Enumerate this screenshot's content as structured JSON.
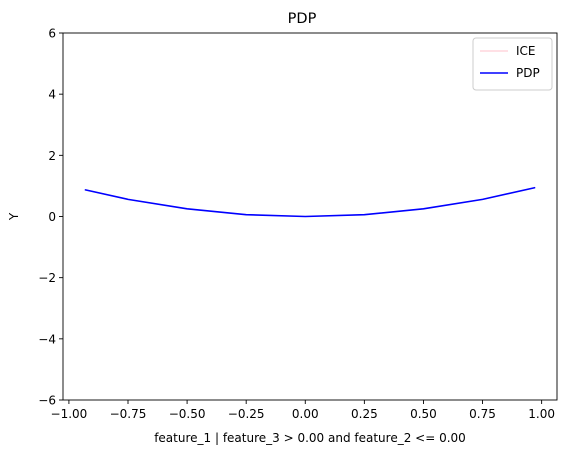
{
  "chart_data": {
    "type": "line",
    "title": "PDP",
    "xlabel": "feature_1 | feature_3 > 0.00 and feature_2 <= 0.00",
    "ylabel": "Y",
    "xlim": [
      -1.025,
      1.065
    ],
    "ylim": [
      -6,
      6
    ],
    "xticks": [
      -1.0,
      -0.75,
      -0.5,
      -0.25,
      0.0,
      0.25,
      0.5,
      0.75,
      1.0
    ],
    "xtick_labels": [
      "−1.00",
      "−0.75",
      "−0.50",
      "−0.25",
      "0.00",
      "0.25",
      "0.50",
      "0.75",
      "1.00"
    ],
    "yticks": [
      -6,
      -4,
      -2,
      0,
      2,
      4,
      6
    ],
    "ytick_labels": [
      "−6",
      "−4",
      "−2",
      "0",
      "2",
      "4",
      "6"
    ],
    "grid": false,
    "legend_position": "top-right",
    "series": [
      {
        "name": "ICE",
        "color": "#ffc0cb",
        "x": [
          -0.93,
          -0.75,
          -0.5,
          -0.25,
          0.0,
          0.25,
          0.5,
          0.75,
          0.97
        ],
        "y": [
          0.87,
          0.56,
          0.25,
          0.06,
          0.0,
          0.06,
          0.25,
          0.56,
          0.94
        ]
      },
      {
        "name": "PDP",
        "color": "#0000ff",
        "x": [
          -0.93,
          -0.75,
          -0.5,
          -0.25,
          0.0,
          0.25,
          0.5,
          0.75,
          0.97
        ],
        "y": [
          0.87,
          0.56,
          0.25,
          0.06,
          0.0,
          0.06,
          0.25,
          0.56,
          0.94
        ]
      }
    ]
  }
}
